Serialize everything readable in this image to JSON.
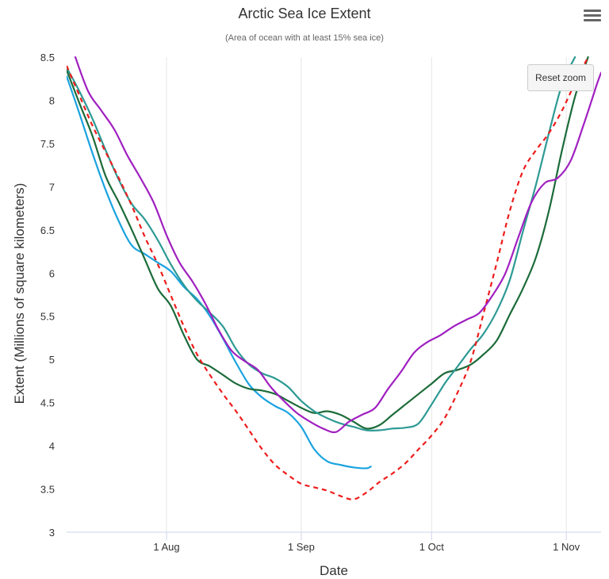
{
  "menu_icon": "hamburger-menu-icon",
  "reset_zoom_label": "Reset zoom",
  "chart_data": {
    "type": "line",
    "title": "Arctic Sea Ice Extent",
    "subtitle": "(Area of ocean with at least 15% sea ice)",
    "xlabel": "Date",
    "ylabel": "Extent (Millions of square kilometers)",
    "xlim": [
      "Jul 9",
      "Nov 9"
    ],
    "ylim": [
      3,
      8.5
    ],
    "y_ticks": [
      "3",
      "3.5",
      "4",
      "4.5",
      "5",
      "5.5",
      "6",
      "6.5",
      "7",
      "7.5",
      "8",
      "8.5"
    ],
    "x_ticks": [
      {
        "date": "Aug 1",
        "label": "1 Aug"
      },
      {
        "date": "Sep 1",
        "label": "1 Sep"
      },
      {
        "date": "Oct 1",
        "label": "1 Oct"
      },
      {
        "date": "Nov 1",
        "label": "1 Nov"
      }
    ],
    "grid": "vertical",
    "series": [
      {
        "color": "#1aa3e0",
        "dashed": false,
        "x": [
          "Jul 9",
          "Jul 12",
          "Jul 15",
          "Jul 18",
          "Jul 21",
          "Jul 24",
          "Jul 27",
          "Jul 30",
          "Aug 2",
          "Aug 5",
          "Aug 8",
          "Aug 11",
          "Aug 14",
          "Aug 17",
          "Aug 20",
          "Aug 23",
          "Aug 26",
          "Aug 29",
          "Sep 1",
          "Sep 4",
          "Sep 7",
          "Sep 10",
          "Sep 13",
          "Sep 16",
          "Sep 17"
        ],
        "y": [
          8.28,
          7.84,
          7.38,
          6.96,
          6.6,
          6.32,
          6.22,
          6.12,
          6.02,
          5.84,
          5.7,
          5.5,
          5.24,
          4.96,
          4.71,
          4.56,
          4.46,
          4.38,
          4.22,
          3.96,
          3.82,
          3.78,
          3.75,
          3.74,
          3.76
        ]
      },
      {
        "color": "#1c6b3a",
        "dashed": false,
        "x": [
          "Jul 9",
          "Jul 12",
          "Jul 15",
          "Jul 18",
          "Jul 21",
          "Jul 24",
          "Jul 27",
          "Jul 30",
          "Aug 2",
          "Aug 5",
          "Aug 8",
          "Aug 11",
          "Aug 14",
          "Aug 17",
          "Aug 20",
          "Aug 23",
          "Aug 26",
          "Aug 29",
          "Sep 1",
          "Sep 4",
          "Sep 7",
          "Sep 10",
          "Sep 13",
          "Sep 16",
          "Sep 19",
          "Sep 22",
          "Sep 25",
          "Sep 28",
          "Oct 1",
          "Oct 4",
          "Oct 7",
          "Oct 10",
          "Oct 13",
          "Oct 16",
          "Oct 19",
          "Oct 22",
          "Oct 25",
          "Oct 28",
          "Oct 31",
          "Nov 3",
          "Nov 6"
        ],
        "y": [
          8.35,
          7.96,
          7.58,
          7.12,
          6.82,
          6.5,
          6.16,
          5.82,
          5.62,
          5.28,
          5.0,
          4.92,
          4.82,
          4.72,
          4.66,
          4.64,
          4.6,
          4.52,
          4.44,
          4.38,
          4.4,
          4.36,
          4.28,
          4.2,
          4.24,
          4.36,
          4.48,
          4.6,
          4.72,
          4.84,
          4.88,
          4.94,
          5.06,
          5.22,
          5.52,
          5.82,
          6.18,
          6.72,
          7.42,
          8.04,
          8.5
        ]
      },
      {
        "color": "#2e9a94",
        "dashed": false,
        "x": [
          "Jul 9",
          "Jul 12",
          "Jul 15",
          "Jul 18",
          "Jul 21",
          "Jul 24",
          "Jul 27",
          "Jul 30",
          "Aug 2",
          "Aug 5",
          "Aug 8",
          "Aug 11",
          "Aug 14",
          "Aug 17",
          "Aug 20",
          "Aug 23",
          "Aug 26",
          "Aug 29",
          "Sep 1",
          "Sep 4",
          "Sep 7",
          "Sep 10",
          "Sep 13",
          "Sep 16",
          "Sep 19",
          "Sep 22",
          "Sep 25",
          "Sep 28",
          "Oct 1",
          "Oct 4",
          "Oct 7",
          "Oct 10",
          "Oct 13",
          "Oct 16",
          "Oct 19",
          "Oct 22",
          "Oct 25",
          "Oct 28",
          "Oct 31",
          "Nov 3"
        ],
        "y": [
          8.38,
          8.1,
          7.78,
          7.42,
          7.08,
          6.8,
          6.62,
          6.38,
          6.1,
          5.86,
          5.68,
          5.54,
          5.38,
          5.12,
          4.94,
          4.84,
          4.78,
          4.68,
          4.52,
          4.4,
          4.32,
          4.26,
          4.22,
          4.18,
          4.18,
          4.2,
          4.21,
          4.26,
          4.48,
          4.72,
          4.92,
          5.12,
          5.3,
          5.56,
          5.92,
          6.48,
          7.02,
          7.62,
          8.18,
          8.5
        ]
      },
      {
        "color": "#ee1c1c",
        "dashed": true,
        "x": [
          "Jul 9",
          "Jul 12",
          "Jul 15",
          "Jul 18",
          "Jul 21",
          "Jul 24",
          "Jul 27",
          "Jul 30",
          "Aug 2",
          "Aug 5",
          "Aug 8",
          "Aug 11",
          "Aug 14",
          "Aug 17",
          "Aug 20",
          "Aug 23",
          "Aug 26",
          "Aug 29",
          "Sep 1",
          "Sep 4",
          "Sep 7",
          "Sep 10",
          "Sep 13",
          "Sep 16",
          "Sep 19",
          "Sep 22",
          "Sep 25",
          "Sep 28",
          "Oct 1",
          "Oct 4",
          "Oct 7",
          "Oct 10",
          "Oct 13",
          "Oct 16",
          "Oct 19",
          "Oct 22",
          "Oct 25",
          "Oct 28",
          "Oct 31",
          "Nov 3",
          "Nov 6"
        ],
        "y": [
          8.4,
          8.05,
          7.7,
          7.4,
          7.1,
          6.78,
          6.42,
          6.1,
          5.74,
          5.38,
          5.06,
          4.82,
          4.6,
          4.4,
          4.18,
          3.96,
          3.78,
          3.66,
          3.56,
          3.52,
          3.48,
          3.42,
          3.38,
          3.46,
          3.58,
          3.68,
          3.8,
          3.96,
          4.12,
          4.32,
          4.62,
          4.98,
          5.54,
          6.12,
          6.72,
          7.18,
          7.42,
          7.62,
          7.88,
          8.2,
          8.5
        ]
      },
      {
        "color": "#a020c0",
        "dashed": false,
        "x": [
          "Jul 11",
          "Jul 14",
          "Jul 17",
          "Jul 20",
          "Jul 23",
          "Jul 26",
          "Jul 29",
          "Aug 1",
          "Aug 4",
          "Aug 7",
          "Aug 10",
          "Aug 13",
          "Aug 16",
          "Aug 19",
          "Aug 22",
          "Aug 25",
          "Aug 28",
          "Aug 31",
          "Sep 3",
          "Sep 6",
          "Sep 9",
          "Sep 12",
          "Sep 15",
          "Sep 18",
          "Sep 21",
          "Sep 24",
          "Sep 27",
          "Sep 30",
          "Oct 3",
          "Oct 6",
          "Oct 9",
          "Oct 12",
          "Oct 15",
          "Oct 18",
          "Oct 21",
          "Oct 24",
          "Oct 27",
          "Oct 30",
          "Nov 2",
          "Nov 5",
          "Nov 8",
          "Nov 9"
        ],
        "y": [
          8.5,
          8.1,
          7.88,
          7.66,
          7.36,
          7.1,
          6.82,
          6.44,
          6.12,
          5.9,
          5.64,
          5.34,
          5.1,
          4.98,
          4.88,
          4.68,
          4.52,
          4.38,
          4.28,
          4.2,
          4.16,
          4.28,
          4.36,
          4.44,
          4.66,
          4.86,
          5.08,
          5.2,
          5.28,
          5.38,
          5.46,
          5.54,
          5.74,
          6.0,
          6.42,
          6.82,
          7.04,
          7.1,
          7.3,
          7.72,
          8.18,
          8.32
        ]
      }
    ]
  }
}
